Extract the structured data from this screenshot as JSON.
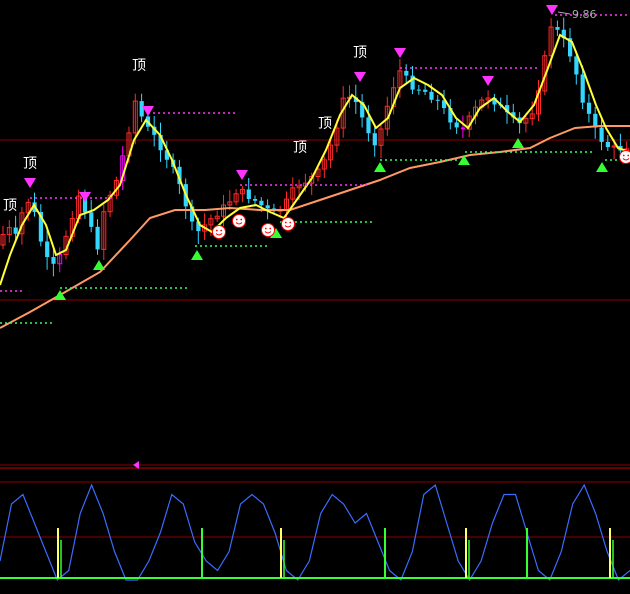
{
  "colors": {
    "background": "#000000",
    "candle_up": "#ff2a2a",
    "candle_down": "#33d6ff",
    "candle_highlight": "#ff00ff",
    "ma_fast": "#ffff33",
    "ma_slow": "#ff9966",
    "top_marker": "#ff33ff",
    "bottom_marker": "#33ff33",
    "top_level": "#ff33ff",
    "bottom_level": "#33ff66",
    "label_text": "#ffffff",
    "grid": "#8b0000",
    "oscillator": "#3a6cff",
    "signal_yellow": "#ffff66",
    "signal_green": "#33ff33",
    "price_tag": "#aaaaaa"
  },
  "labels": {
    "top_text": "顶",
    "price_high": "9.86"
  },
  "chart_data": [
    {
      "type": "candlestick",
      "title": "",
      "grid": true,
      "price_high_label": "9.86",
      "top_markers": [
        {
          "bar": 1,
          "label": "顶"
        },
        {
          "bar": 5,
          "label": "顶"
        },
        {
          "bar": 11,
          "label": ""
        },
        {
          "bar": 18,
          "label": ""
        },
        {
          "bar": 27,
          "label": "顶"
        },
        {
          "bar": 34,
          "label": "顶"
        },
        {
          "bar": 42,
          "label": "顶"
        },
        {
          "bar": 45,
          "label": ""
        },
        {
          "bar": 55,
          "label": ""
        },
        {
          "bar": 61,
          "label": ""
        }
      ],
      "bottom_markers": [
        4,
        7,
        14,
        20,
        30,
        35,
        44,
        52,
        60
      ],
      "smiley_bars": [
        15,
        16,
        19,
        20,
        63
      ]
    },
    {
      "type": "line",
      "title": "",
      "series": [
        {
          "values": [
            0.2,
            0.8,
            0.9,
            0.6,
            0.3,
            0.0,
            0.1,
            0.7,
            1.0,
            0.7,
            0.3,
            0.0,
            0.0,
            0.2,
            0.5,
            0.9,
            0.8,
            0.4,
            0.2,
            0.1,
            0.3,
            0.8,
            0.9,
            0.8,
            0.5,
            0.1,
            0.0,
            0.2,
            0.7,
            0.9,
            0.8,
            0.6,
            0.7,
            0.4,
            0.1,
            0.0,
            0.3,
            0.9,
            1.0,
            0.6,
            0.2,
            0.0,
            0.2,
            0.6,
            0.9,
            0.9,
            0.5,
            0.1,
            0.0,
            0.3,
            0.8,
            1.0,
            0.7,
            0.3,
            0.0,
            0.1
          ]
        }
      ],
      "signal_bars": [
        {
          "index": 5,
          "color": "yellow"
        },
        {
          "index": 12,
          "color": "green"
        },
        {
          "index": 19,
          "color": "yellow"
        },
        {
          "index": 26,
          "color": "green"
        },
        {
          "index": 33,
          "color": "green"
        },
        {
          "index": 39,
          "color": "yellow"
        },
        {
          "index": 46,
          "color": "green"
        },
        {
          "index": 53,
          "color": "yellow"
        }
      ]
    }
  ]
}
